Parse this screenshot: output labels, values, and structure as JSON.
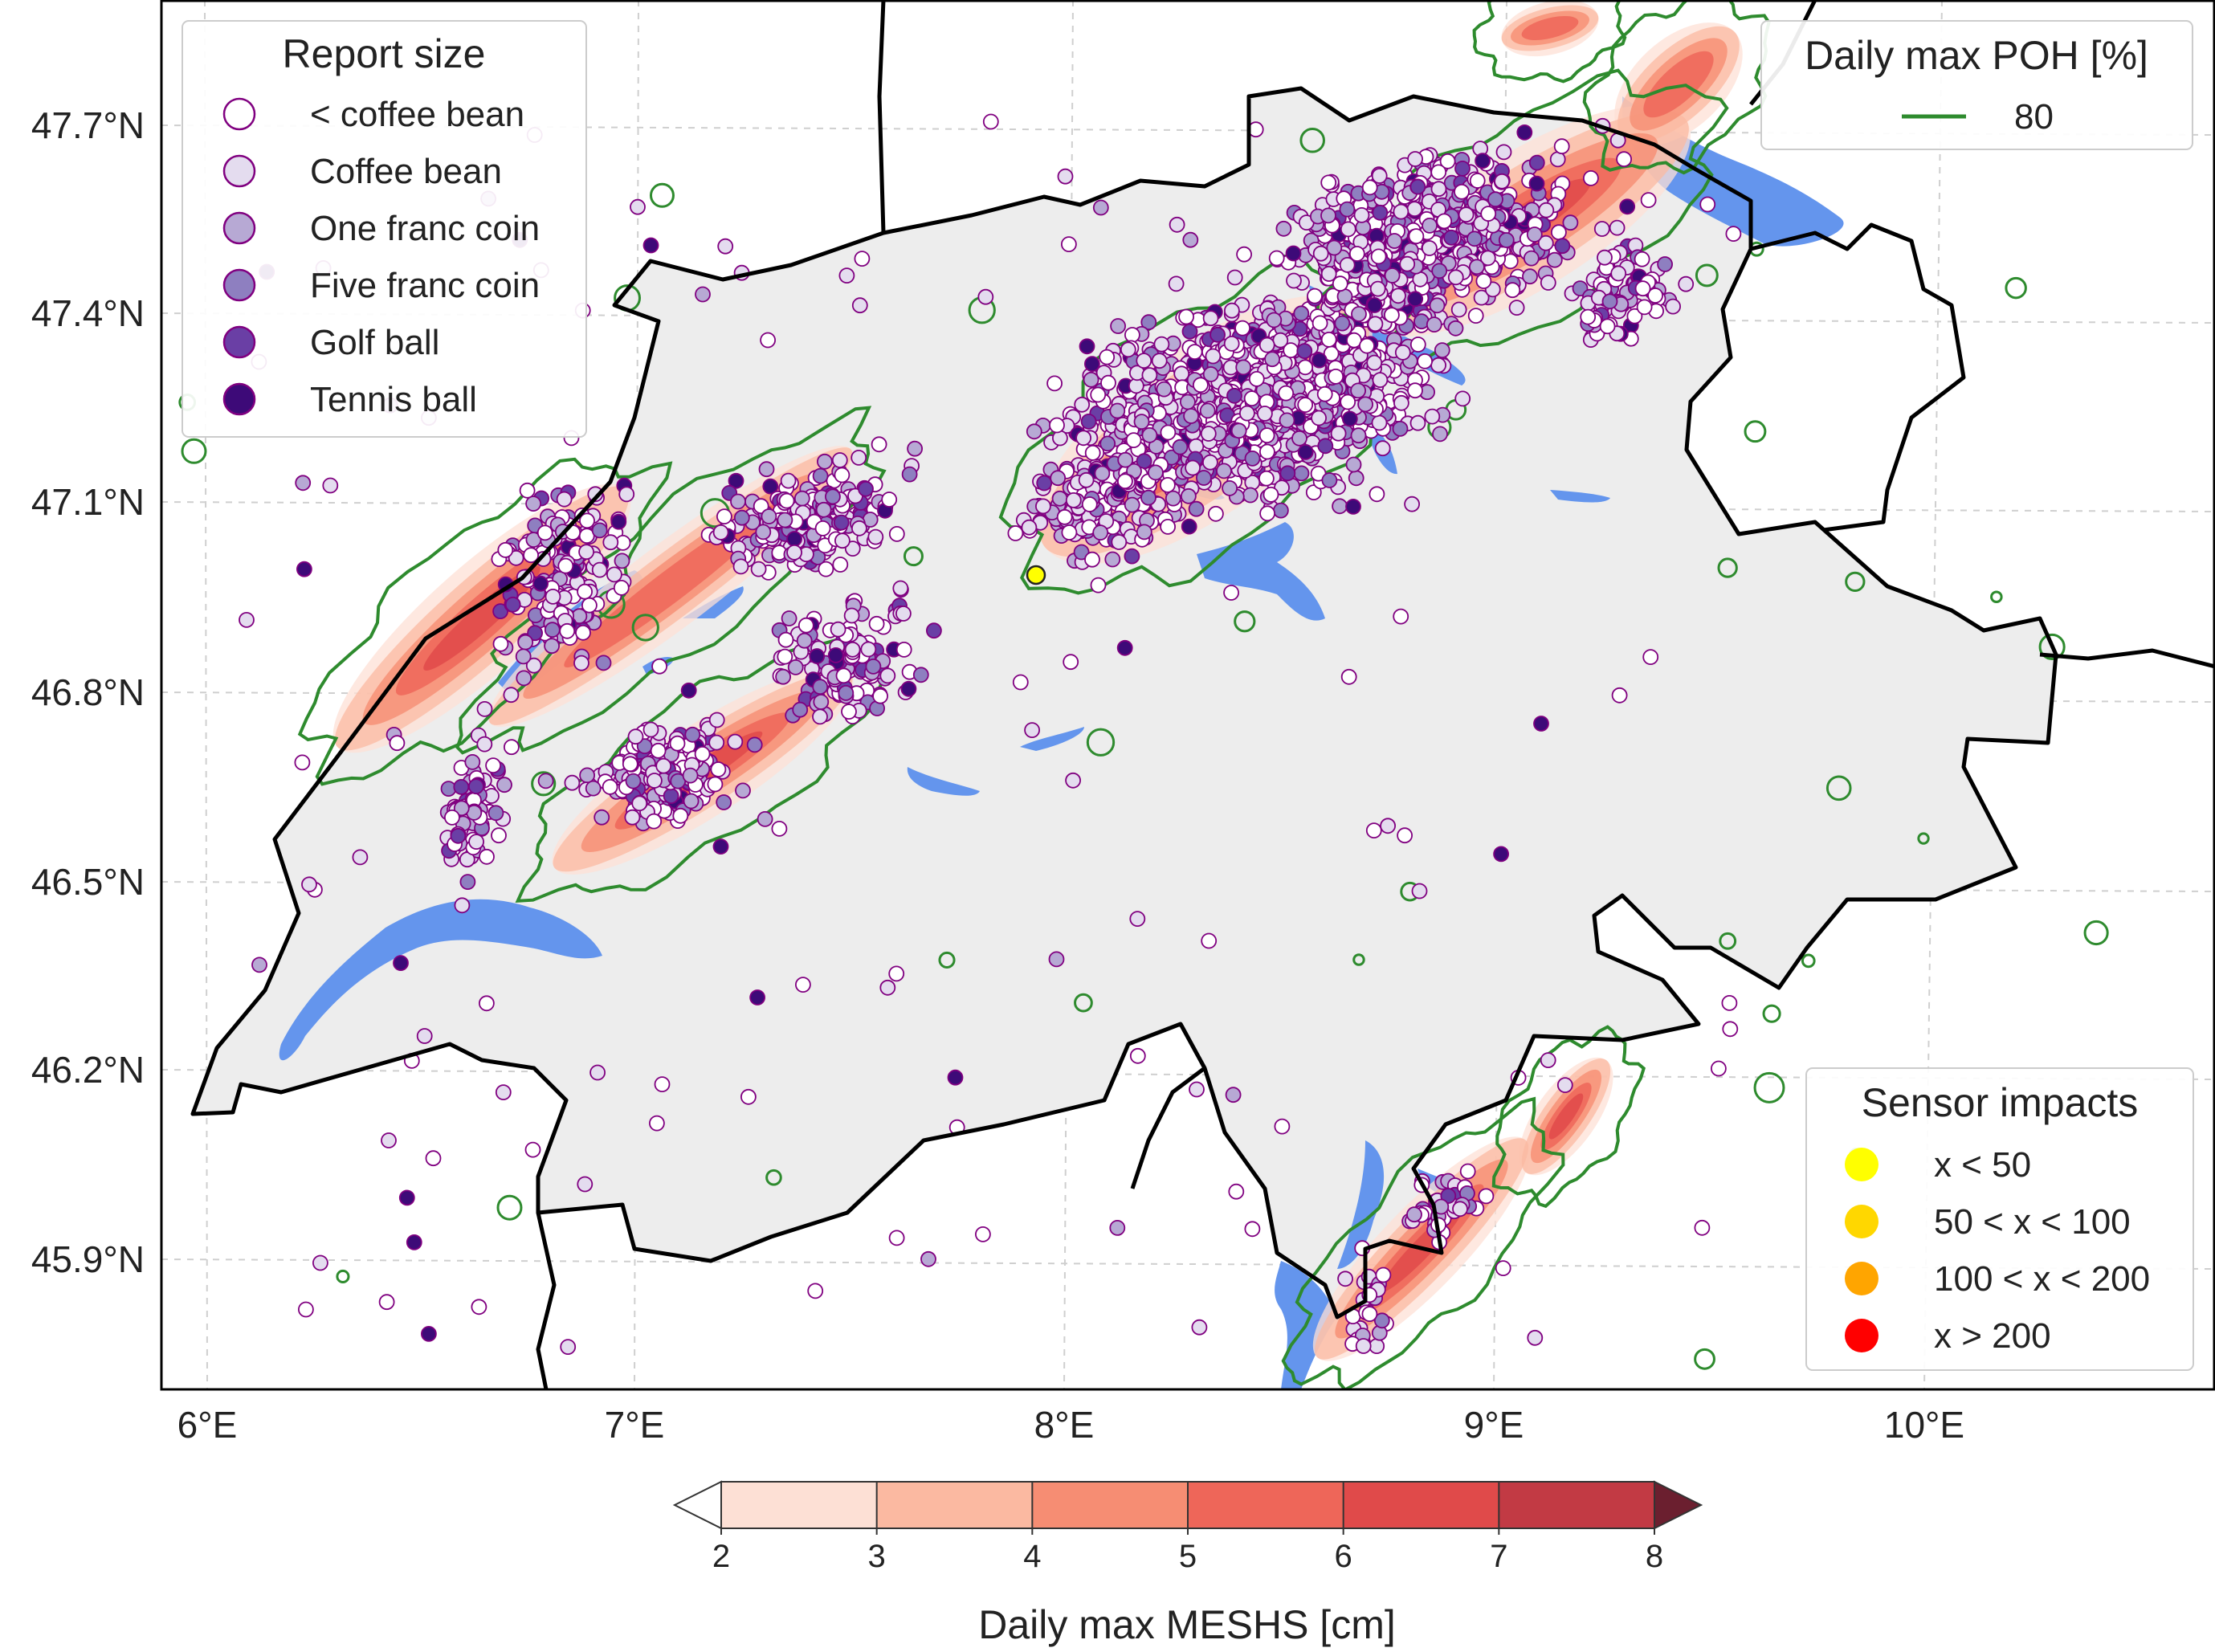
{
  "map": {
    "lat_ticks": [
      "47.7°N",
      "47.4°N",
      "47.1°N",
      "46.8°N",
      "46.5°N",
      "46.2°N",
      "45.9°N"
    ],
    "lon_ticks": [
      "6°E",
      "7°E",
      "8°E",
      "9°E",
      "10°E"
    ],
    "colors": {
      "border": "#000000",
      "lakes": "#6495ED",
      "poh_contour": "#2e8b2e",
      "terrain": "#efefef"
    }
  },
  "legend_report": {
    "title": "Report size",
    "items": [
      {
        "label": "< coffee bean",
        "color": "#ffffff"
      },
      {
        "label": "Coffee bean",
        "color": "#e4dcef"
      },
      {
        "label": "One franc coin",
        "color": "#b7a9d4"
      },
      {
        "label": "Five franc coin",
        "color": "#8e7fc0"
      },
      {
        "label": "Golf ball",
        "color": "#6a3fa5"
      },
      {
        "label": "Tennis ball",
        "color": "#3d0a78"
      }
    ],
    "edge_color": "#800080"
  },
  "legend_poh": {
    "title": "Daily max POH [%]",
    "entry": "80",
    "color": "#2e8b2e"
  },
  "legend_sensor": {
    "title": "Sensor impacts",
    "items": [
      {
        "label": "x < 50",
        "color": "#ffff00"
      },
      {
        "label": "50 < x < 100",
        "color": "#ffd700"
      },
      {
        "label": "100 < x < 200",
        "color": "#ffa500"
      },
      {
        "label": "x > 200",
        "color": "#ff0000"
      }
    ]
  },
  "colorbar": {
    "label": "Daily max MESHS [cm]",
    "ticks": [
      "2",
      "3",
      "4",
      "5",
      "6",
      "7",
      "8"
    ],
    "colors": [
      "#fde0d5",
      "#fbb9a1",
      "#f68d73",
      "#ee6659",
      "#e04a4a",
      "#c23a44",
      "#a32a3a"
    ],
    "under_color": "#ffffff",
    "over_color": "#6b1f2f"
  }
}
